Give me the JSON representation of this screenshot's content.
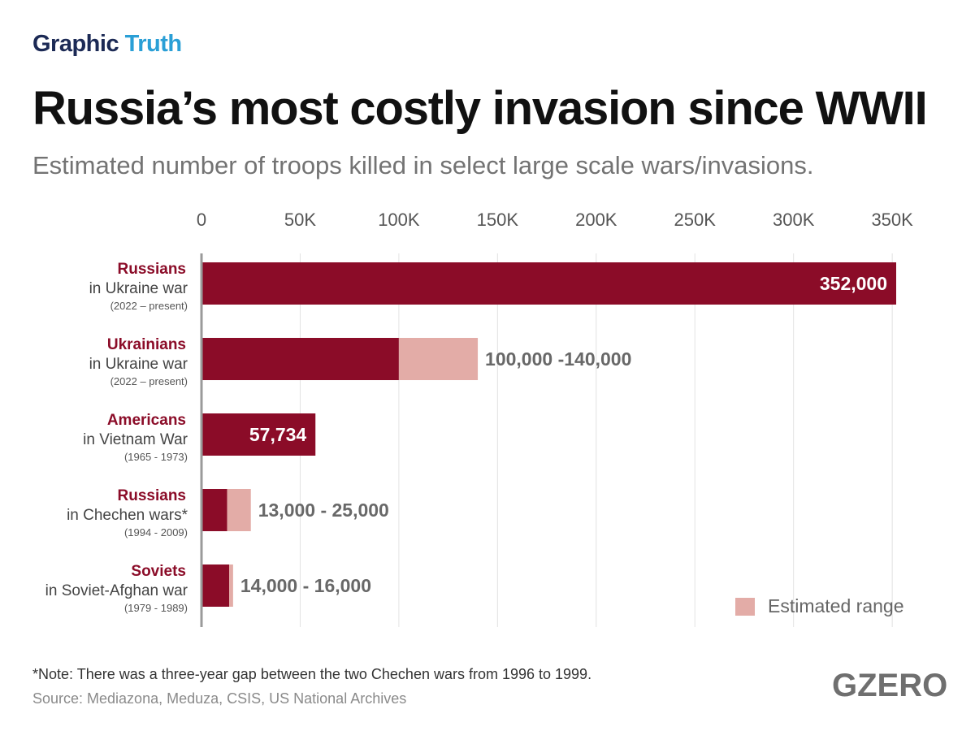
{
  "header": {
    "brand_part1": "Graphic",
    "brand_part2": "Truth",
    "title": "Russia’s most costly invasion since WWII",
    "subtitle": "Estimated number of troops killed in select large scale wars/invasions."
  },
  "colors": {
    "bar": "#8b0c28",
    "range": "#e3aca7",
    "category": "#8b0c28",
    "label_dark": "#686868",
    "label_light": "#ffffff",
    "grid": "#e2e2e2",
    "axis": "#9a9a9a"
  },
  "chart_data": {
    "type": "bar",
    "orientation": "horizontal",
    "title": "Russia’s most costly invasion since WWII",
    "subtitle": "Estimated number of troops killed in select large scale wars/invasions.",
    "xlim": [
      0,
      350000
    ],
    "ticks": [
      0,
      50000,
      100000,
      150000,
      200000,
      250000,
      300000,
      350000
    ],
    "tick_labels": [
      "0",
      "50K",
      "100K",
      "150K",
      "200K",
      "250K",
      "300K",
      "350K"
    ],
    "grid": true,
    "legend": {
      "entries": [
        "Estimated range"
      ],
      "placement": "bottom-right"
    },
    "bars": [
      {
        "group": "Russians",
        "conflict": "in Ukraine war",
        "period": "(2022 – present)",
        "low": 352000,
        "high": 352000,
        "label": "352,000",
        "label_inside": true
      },
      {
        "group": "Ukrainians",
        "conflict": "in Ukraine war",
        "period": "(2022 – present)",
        "low": 100000,
        "high": 140000,
        "label": "100,000 -140,000",
        "label_inside": false
      },
      {
        "group": "Americans",
        "conflict": "in Vietnam War",
        "period": "(1965 - 1973)",
        "low": 57734,
        "high": 57734,
        "label": "57,734",
        "label_inside": true
      },
      {
        "group": "Russians",
        "conflict": "in Chechen wars*",
        "period": "(1994 - 2009)",
        "low": 13000,
        "high": 25000,
        "label": "13,000 - 25,000",
        "label_inside": false
      },
      {
        "group": "Soviets",
        "conflict": "in Soviet-Afghan war",
        "period": "(1979 - 1989)",
        "low": 14000,
        "high": 16000,
        "label": "14,000 - 16,000",
        "label_inside": false
      }
    ]
  },
  "legend": {
    "label": "Estimated range"
  },
  "footer": {
    "note": "*Note: There was a three-year gap between the two Chechen wars from 1996 to 1999.",
    "source": "Source: Mediazona, Meduza, CSIS, US National Archives",
    "logo": "GZERO"
  }
}
